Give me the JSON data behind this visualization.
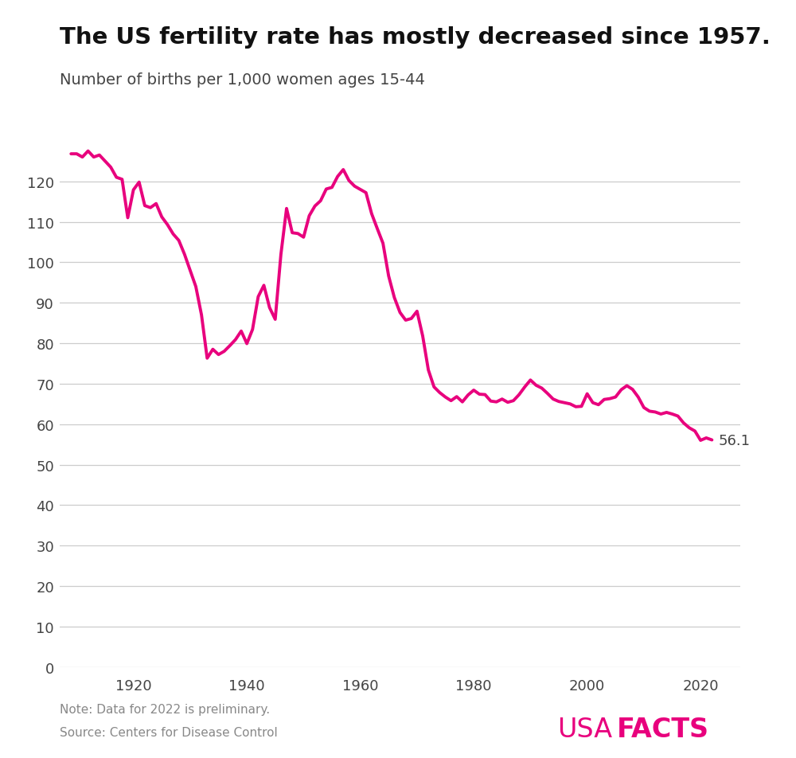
{
  "title": "The US fertility rate has mostly decreased since 1957.",
  "subtitle": "Number of births per 1,000 women ages 15-44",
  "line_color": "#E8007D",
  "background_color": "#ffffff",
  "grid_color": "#cccccc",
  "annotation_value": "56.1",
  "annotation_year": 2022,
  "ylim": [
    0,
    135
  ],
  "yticks": [
    0,
    10,
    20,
    30,
    40,
    50,
    60,
    70,
    80,
    90,
    100,
    110,
    120
  ],
  "xlim": [
    1907,
    2027
  ],
  "xticks": [
    1920,
    1940,
    1960,
    1980,
    2000,
    2020
  ],
  "note": "Note: Data for 2022 is preliminary.",
  "source": "Source: Centers for Disease Control",
  "usafacts_usa": "USA",
  "usafacts_facts": "FACTS",
  "years": [
    1909,
    1910,
    1911,
    1912,
    1913,
    1914,
    1915,
    1916,
    1917,
    1918,
    1919,
    1920,
    1921,
    1922,
    1923,
    1924,
    1925,
    1926,
    1927,
    1928,
    1929,
    1930,
    1931,
    1932,
    1933,
    1934,
    1935,
    1936,
    1937,
    1938,
    1939,
    1940,
    1941,
    1942,
    1943,
    1944,
    1945,
    1946,
    1947,
    1948,
    1949,
    1950,
    1951,
    1952,
    1953,
    1954,
    1955,
    1956,
    1957,
    1958,
    1959,
    1960,
    1961,
    1962,
    1963,
    1964,
    1965,
    1966,
    1967,
    1968,
    1969,
    1970,
    1971,
    1972,
    1973,
    1974,
    1975,
    1976,
    1977,
    1978,
    1979,
    1980,
    1981,
    1982,
    1983,
    1984,
    1985,
    1986,
    1987,
    1988,
    1989,
    1990,
    1991,
    1992,
    1993,
    1994,
    1995,
    1996,
    1997,
    1998,
    1999,
    2000,
    2001,
    2002,
    2003,
    2004,
    2005,
    2006,
    2007,
    2008,
    2009,
    2010,
    2011,
    2012,
    2013,
    2014,
    2015,
    2016,
    2017,
    2018,
    2019,
    2020,
    2021,
    2022
  ],
  "values": [
    126.8,
    126.8,
    126.0,
    127.5,
    126.0,
    126.5,
    125.0,
    123.5,
    121.0,
    120.5,
    111.0,
    117.9,
    119.8,
    114.0,
    113.5,
    114.5,
    111.2,
    109.3,
    107.0,
    105.4,
    102.0,
    98.0,
    94.0,
    87.0,
    76.3,
    78.5,
    77.2,
    78.0,
    79.4,
    80.9,
    83.0,
    79.9,
    83.4,
    91.5,
    94.3,
    88.8,
    85.9,
    101.9,
    113.3,
    107.3,
    107.1,
    106.2,
    111.5,
    113.9,
    115.2,
    118.1,
    118.5,
    121.2,
    122.9,
    120.2,
    118.8,
    118.0,
    117.2,
    112.0,
    108.3,
    104.7,
    96.6,
    91.3,
    87.6,
    85.7,
    86.1,
    87.9,
    81.8,
    73.4,
    69.2,
    67.8,
    66.7,
    65.8,
    66.8,
    65.5,
    67.2,
    68.4,
    67.4,
    67.3,
    65.7,
    65.5,
    66.2,
    65.4,
    65.8,
    67.3,
    69.2,
    70.9,
    69.6,
    68.9,
    67.6,
    66.2,
    65.6,
    65.3,
    65.0,
    64.3,
    64.4,
    67.5,
    65.3,
    64.8,
    66.1,
    66.3,
    66.7,
    68.5,
    69.5,
    68.6,
    66.7,
    64.1,
    63.2,
    63.0,
    62.5,
    62.9,
    62.5,
    62.0,
    60.3,
    59.1,
    58.3,
    56.0,
    56.6,
    56.1
  ]
}
